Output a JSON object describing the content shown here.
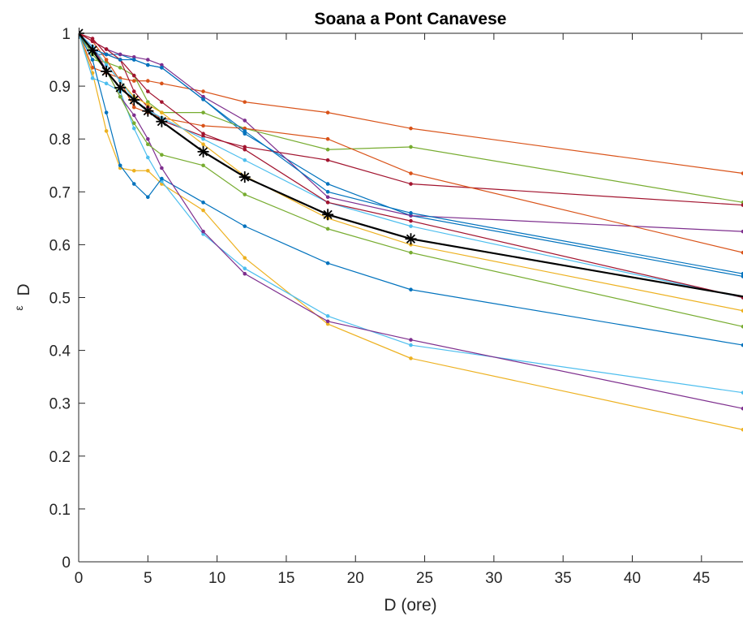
{
  "chart_data": {
    "type": "line",
    "title": "Soana a Pont Canavese",
    "xlabel": "D (ore)",
    "ylabel": {
      "main": "ε",
      "sub": "D"
    },
    "xlim": [
      0,
      48
    ],
    "ylim": [
      0,
      1
    ],
    "xticks": [
      0,
      5,
      10,
      15,
      20,
      25,
      30,
      35,
      40,
      45
    ],
    "yticks": [
      0,
      0.1,
      0.2,
      0.3,
      0.4,
      0.5,
      0.6,
      0.7,
      0.8,
      0.9,
      1
    ],
    "grid": false,
    "legend": "none",
    "x": [
      0,
      1,
      2,
      3,
      4,
      5,
      6,
      9,
      12,
      18,
      24,
      48
    ],
    "series": [
      {
        "color": "#0072BD",
        "values": [
          1,
          0.96,
          0.96,
          0.96,
          0.95,
          0.94,
          0.935,
          0.875,
          0.81,
          0.715,
          0.655,
          0.54
        ]
      },
      {
        "color": "#D95319",
        "values": [
          1,
          0.935,
          0.925,
          0.915,
          0.91,
          0.91,
          0.905,
          0.89,
          0.87,
          0.85,
          0.82,
          0.735
        ]
      },
      {
        "color": "#EDB120",
        "values": [
          1,
          0.925,
          0.815,
          0.745,
          0.74,
          0.74,
          0.715,
          0.665,
          0.575,
          0.45,
          0.385,
          0.25
        ]
      },
      {
        "color": "#7E2F8E",
        "values": [
          1,
          0.985,
          0.97,
          0.96,
          0.955,
          0.95,
          0.94,
          0.88,
          0.835,
          0.69,
          0.655,
          0.625
        ]
      },
      {
        "color": "#77AC30",
        "values": [
          1,
          0.95,
          0.945,
          0.935,
          0.92,
          0.87,
          0.85,
          0.85,
          0.82,
          0.78,
          0.785,
          0.68
        ]
      },
      {
        "color": "#4DBEEE",
        "values": [
          1,
          0.915,
          0.905,
          0.89,
          0.82,
          0.765,
          0.72,
          0.62,
          0.555,
          0.465,
          0.41,
          0.32
        ]
      },
      {
        "color": "#A2142F",
        "values": [
          1,
          0.99,
          0.96,
          0.95,
          0.89,
          0.86,
          0.835,
          0.805,
          0.785,
          0.76,
          0.715,
          0.675
        ]
      },
      {
        "color": "#0072BD",
        "values": [
          1,
          0.95,
          0.85,
          0.75,
          0.715,
          0.69,
          0.725,
          0.68,
          0.635,
          0.565,
          0.515,
          0.41
        ]
      },
      {
        "color": "#D95319",
        "values": [
          1,
          0.985,
          0.95,
          0.91,
          0.86,
          0.85,
          0.84,
          0.825,
          0.82,
          0.8,
          0.735,
          0.585
        ]
      },
      {
        "color": "#EDB120",
        "values": [
          1,
          0.97,
          0.94,
          0.91,
          0.88,
          0.865,
          0.85,
          0.79,
          0.73,
          0.65,
          0.6,
          0.475
        ]
      },
      {
        "color": "#7E2F8E",
        "values": [
          1,
          0.975,
          0.93,
          0.88,
          0.845,
          0.8,
          0.745,
          0.625,
          0.545,
          0.455,
          0.42,
          0.29
        ]
      },
      {
        "color": "#77AC30",
        "values": [
          1,
          0.96,
          0.93,
          0.88,
          0.83,
          0.79,
          0.77,
          0.75,
          0.695,
          0.63,
          0.585,
          0.445
        ]
      },
      {
        "color": "#4DBEEE",
        "values": [
          1,
          0.975,
          0.94,
          0.91,
          0.875,
          0.855,
          0.84,
          0.8,
          0.76,
          0.68,
          0.635,
          0.5
        ]
      },
      {
        "color": "#A2142F",
        "values": [
          1,
          0.985,
          0.97,
          0.95,
          0.92,
          0.89,
          0.87,
          0.81,
          0.78,
          0.68,
          0.645,
          0.5
        ]
      },
      {
        "color": "#0072BD",
        "values": [
          1,
          0.97,
          0.96,
          0.95,
          0.95,
          0.94,
          0.935,
          0.875,
          0.815,
          0.7,
          0.66,
          0.545
        ]
      }
    ],
    "mean_series": {
      "color": "#000000",
      "marker": "asterisk",
      "values": [
        1,
        0.968,
        0.928,
        0.897,
        0.874,
        0.853,
        0.833,
        0.776,
        0.728,
        0.657,
        0.611,
        0.502
      ]
    }
  }
}
